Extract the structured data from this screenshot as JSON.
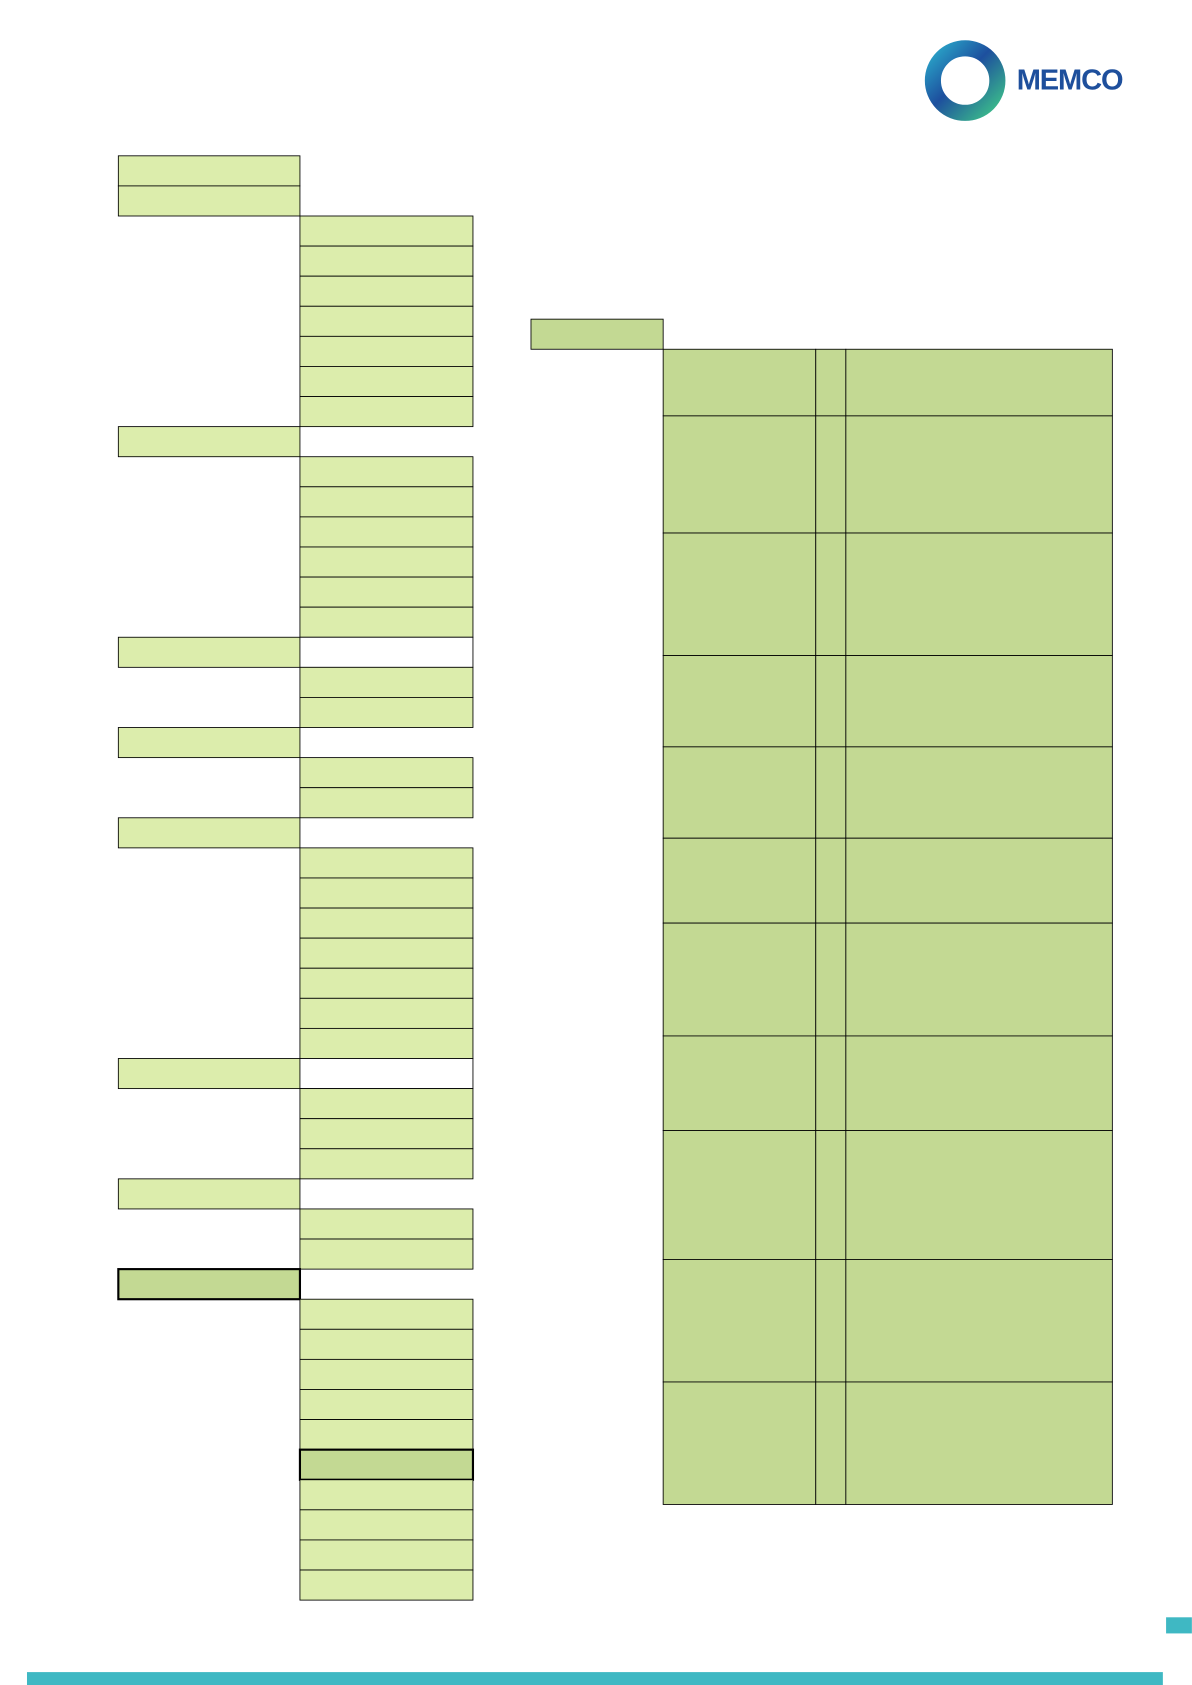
{
  "header": {
    "logo_text": "MEMCO"
  }
}
